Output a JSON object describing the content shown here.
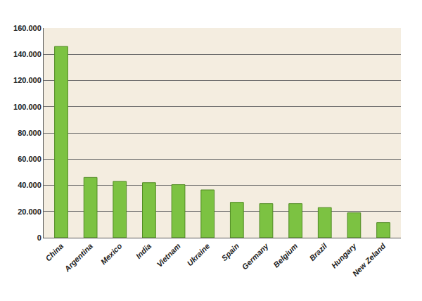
{
  "chart_data": {
    "type": "bar",
    "categories": [
      "China",
      "Argentina",
      "Mexico",
      "India",
      "Vietnam",
      "Ukraine",
      "Spain",
      "Germany",
      "Belgium",
      "Brazil",
      "Hungary",
      "New Zeland"
    ],
    "values": [
      146000,
      46000,
      43000,
      42000,
      40500,
      36500,
      27000,
      26000,
      26000,
      23000,
      19000,
      11500
    ],
    "color": "#7cc242",
    "ylim": [
      0,
      160000
    ],
    "yticks": [
      0,
      {
        "value": 20000,
        "label": "20.000"
      },
      {
        "value": 40000,
        "label": "40.000"
      },
      {
        "value": 60000,
        "label": "60.000"
      },
      {
        "value": 80000,
        "label": "80.000"
      },
      {
        "value": 100000,
        "label": "100.000"
      },
      {
        "value": 120000,
        "label": "120.000"
      },
      {
        "value": 140000,
        "label": "140.000"
      },
      {
        "value": 160000,
        "label": "160.000"
      }
    ],
    "grid": true
  }
}
